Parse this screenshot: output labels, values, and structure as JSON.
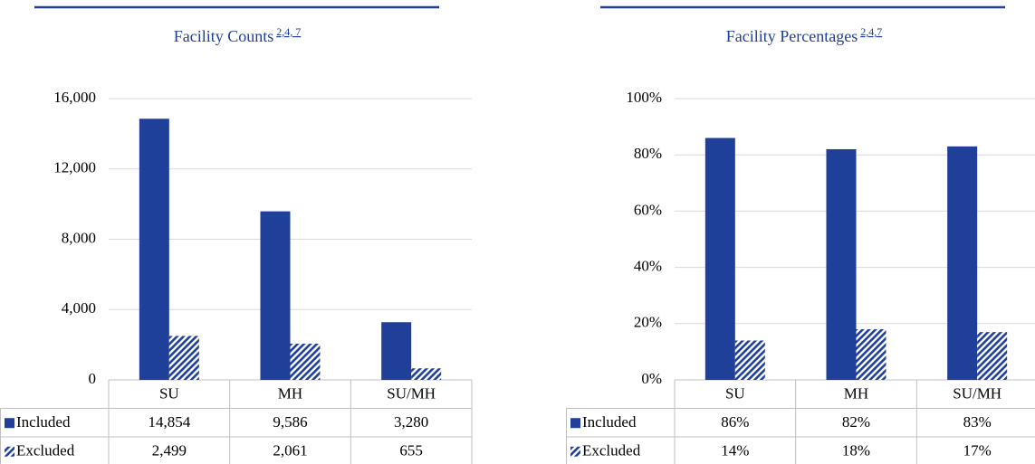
{
  "chart_data": [
    {
      "type": "bar",
      "title": "Facility Counts",
      "title_refs": "2,4, 7",
      "categories": [
        "SU",
        "MH",
        "SU/MH"
      ],
      "series": [
        {
          "name": "Included",
          "color": "#1f3f99",
          "fill_style": "solid",
          "values": [
            14854,
            9586,
            3280
          ],
          "value_labels": [
            "14,854",
            "9,586",
            "3,280"
          ]
        },
        {
          "name": "Excluded",
          "color": "#1f3f99",
          "fill_style": "hatch",
          "values": [
            2499,
            2061,
            655
          ],
          "value_labels": [
            "2,499",
            "2,061",
            "655"
          ]
        }
      ],
      "ylim": [
        0,
        16000
      ],
      "yticks": [
        0,
        {
          "value": 4000,
          "label": "4,000"
        },
        {
          "value": 8000,
          "label": "8,000"
        },
        {
          "value": 12000,
          "label": "12,000"
        },
        {
          "value": 16000,
          "label": "16,000"
        }
      ],
      "grid": true
    },
    {
      "type": "bar",
      "title": "Facility Percentages",
      "title_refs": "2,4,7",
      "categories": [
        "SU",
        "MH",
        "SU/MH"
      ],
      "series": [
        {
          "name": "Included",
          "color": "#1f3f99",
          "fill_style": "solid",
          "values": [
            86,
            82,
            83
          ],
          "value_labels": [
            "86%",
            "82%",
            "83%"
          ]
        },
        {
          "name": "Excluded",
          "color": "#1f3f99",
          "fill_style": "hatch",
          "values": [
            14,
            18,
            17
          ],
          "value_labels": [
            "14%",
            "18%",
            "17%"
          ]
        }
      ],
      "ylim": [
        0,
        100
      ],
      "yticks": [
        {
          "value": 0,
          "label": "0%"
        },
        {
          "value": 20,
          "label": "20%"
        },
        {
          "value": 40,
          "label": "40%"
        },
        {
          "value": 60,
          "label": "60%"
        },
        {
          "value": 80,
          "label": "80%"
        },
        {
          "value": 100,
          "label": "100%"
        }
      ],
      "grid": true
    }
  ]
}
